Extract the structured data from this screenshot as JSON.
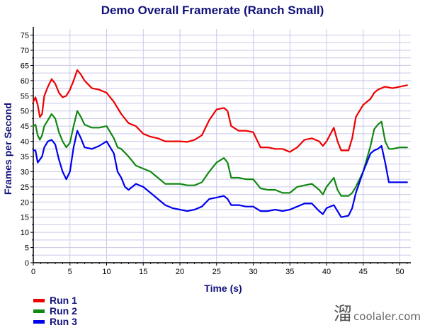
{
  "chart_data": {
    "type": "line",
    "title": "Demo Overall Framerate (Ranch Small)",
    "xlabel": "Time (s)",
    "ylabel": "Frames per Second",
    "xlim": [
      0,
      51.5
    ],
    "ylim": [
      0,
      77
    ],
    "xticks": [
      0,
      5,
      10,
      15,
      20,
      25,
      30,
      35,
      40,
      45,
      50
    ],
    "yticks": [
      0,
      5,
      10,
      15,
      20,
      25,
      30,
      35,
      40,
      45,
      50,
      55,
      60,
      65,
      70,
      75
    ],
    "grid": true,
    "legend_position": "bottom-left",
    "series": [
      {
        "name": "Run 1",
        "color": "#ee0000",
        "points": [
          [
            0,
            53
          ],
          [
            0.3,
            54.5
          ],
          [
            0.6,
            52
          ],
          [
            0.9,
            48
          ],
          [
            1.2,
            49
          ],
          [
            1.5,
            55
          ],
          [
            2,
            58
          ],
          [
            2.5,
            60.5
          ],
          [
            3,
            59
          ],
          [
            3.5,
            56
          ],
          [
            4,
            54.5
          ],
          [
            4.5,
            55
          ],
          [
            5,
            57
          ],
          [
            5.5,
            60
          ],
          [
            6,
            63.5
          ],
          [
            6.5,
            62
          ],
          [
            7,
            60
          ],
          [
            8,
            57.5
          ],
          [
            9,
            57
          ],
          [
            10,
            56
          ],
          [
            11,
            53
          ],
          [
            12,
            49
          ],
          [
            13,
            46
          ],
          [
            14,
            45
          ],
          [
            15,
            42.5
          ],
          [
            16,
            41.5
          ],
          [
            17,
            41
          ],
          [
            18,
            40
          ],
          [
            19,
            40
          ],
          [
            20,
            40
          ],
          [
            21,
            39.8
          ],
          [
            22,
            40.5
          ],
          [
            23,
            42
          ],
          [
            24,
            47
          ],
          [
            25,
            50.5
          ],
          [
            26,
            51
          ],
          [
            26.5,
            50
          ],
          [
            27,
            45
          ],
          [
            28,
            43.5
          ],
          [
            29,
            43.5
          ],
          [
            30,
            43
          ],
          [
            31,
            38
          ],
          [
            32,
            38
          ],
          [
            33,
            37.5
          ],
          [
            34,
            37.5
          ],
          [
            35,
            36.5
          ],
          [
            36,
            38
          ],
          [
            37,
            40.5
          ],
          [
            38,
            41
          ],
          [
            39,
            40
          ],
          [
            39.5,
            38.5
          ],
          [
            40,
            40
          ],
          [
            41,
            44.5
          ],
          [
            41.5,
            40
          ],
          [
            42,
            37
          ],
          [
            43,
            37
          ],
          [
            43.5,
            41
          ],
          [
            44,
            48
          ],
          [
            45,
            52
          ],
          [
            46,
            54
          ],
          [
            46.5,
            56
          ],
          [
            47,
            57
          ],
          [
            48,
            58
          ],
          [
            49,
            57.5
          ],
          [
            50,
            58
          ],
          [
            51,
            58.5
          ]
        ]
      },
      {
        "name": "Run 2",
        "color": "#118811",
        "points": [
          [
            0,
            45
          ],
          [
            0.3,
            45.5
          ],
          [
            0.6,
            42
          ],
          [
            0.9,
            40.5
          ],
          [
            1.2,
            42
          ],
          [
            1.5,
            45
          ],
          [
            2,
            47
          ],
          [
            2.5,
            49
          ],
          [
            3,
            47.5
          ],
          [
            3.5,
            43
          ],
          [
            4,
            40
          ],
          [
            4.5,
            38
          ],
          [
            5,
            39.5
          ],
          [
            5.5,
            45
          ],
          [
            6,
            50
          ],
          [
            6.5,
            48
          ],
          [
            7,
            45.5
          ],
          [
            8,
            44.5
          ],
          [
            9,
            44.5
          ],
          [
            10,
            45
          ],
          [
            11,
            41
          ],
          [
            11.5,
            38
          ],
          [
            12,
            37.5
          ],
          [
            13,
            35
          ],
          [
            14,
            32
          ],
          [
            15,
            31
          ],
          [
            16,
            30
          ],
          [
            17,
            28
          ],
          [
            18,
            26
          ],
          [
            19,
            26
          ],
          [
            20,
            26
          ],
          [
            21,
            25.5
          ],
          [
            22,
            25.5
          ],
          [
            23,
            26.5
          ],
          [
            24,
            30
          ],
          [
            25,
            33
          ],
          [
            26,
            34.5
          ],
          [
            26.5,
            33
          ],
          [
            27,
            28
          ],
          [
            28,
            28
          ],
          [
            29,
            27.5
          ],
          [
            30,
            27.5
          ],
          [
            31,
            24.5
          ],
          [
            32,
            24
          ],
          [
            33,
            24
          ],
          [
            34,
            23
          ],
          [
            35,
            23
          ],
          [
            36,
            25
          ],
          [
            37,
            25.5
          ],
          [
            38,
            26
          ],
          [
            39,
            24
          ],
          [
            39.5,
            22.5
          ],
          [
            40,
            25
          ],
          [
            41,
            28
          ],
          [
            41.5,
            24
          ],
          [
            42,
            22
          ],
          [
            43,
            22
          ],
          [
            43.5,
            23
          ],
          [
            44,
            25
          ],
          [
            45,
            30
          ],
          [
            46,
            38.5
          ],
          [
            46.5,
            44
          ],
          [
            47,
            45.5
          ],
          [
            47.5,
            46.5
          ],
          [
            48,
            40
          ],
          [
            48.5,
            37.5
          ],
          [
            49,
            37.5
          ],
          [
            50,
            38
          ],
          [
            51,
            38
          ]
        ]
      },
      {
        "name": "Run 3",
        "color": "#0000ee",
        "points": [
          [
            0,
            37
          ],
          [
            0.3,
            37
          ],
          [
            0.6,
            33
          ],
          [
            0.9,
            34
          ],
          [
            1.2,
            35
          ],
          [
            1.5,
            38
          ],
          [
            2,
            40
          ],
          [
            2.5,
            40.5
          ],
          [
            3,
            39
          ],
          [
            3.5,
            34
          ],
          [
            4,
            30
          ],
          [
            4.5,
            27.5
          ],
          [
            5,
            30
          ],
          [
            5.5,
            38
          ],
          [
            6,
            43.5
          ],
          [
            6.5,
            41
          ],
          [
            7,
            38
          ],
          [
            8,
            37.5
          ],
          [
            9,
            38.5
          ],
          [
            10,
            40
          ],
          [
            11,
            36
          ],
          [
            11.5,
            30
          ],
          [
            12,
            28
          ],
          [
            12.5,
            25
          ],
          [
            13,
            24
          ],
          [
            14,
            26
          ],
          [
            15,
            25
          ],
          [
            16,
            23
          ],
          [
            17,
            21
          ],
          [
            18,
            19
          ],
          [
            19,
            18
          ],
          [
            20,
            17.5
          ],
          [
            21,
            17
          ],
          [
            22,
            17.5
          ],
          [
            23,
            18.5
          ],
          [
            24,
            21
          ],
          [
            25,
            21.5
          ],
          [
            26,
            22
          ],
          [
            26.5,
            21
          ],
          [
            27,
            19
          ],
          [
            28,
            19
          ],
          [
            29,
            18.5
          ],
          [
            30,
            18.5
          ],
          [
            31,
            17
          ],
          [
            32,
            17
          ],
          [
            33,
            17.5
          ],
          [
            34,
            17
          ],
          [
            35,
            17.5
          ],
          [
            36,
            18.5
          ],
          [
            37,
            19.5
          ],
          [
            38,
            19.5
          ],
          [
            39,
            17
          ],
          [
            39.5,
            16
          ],
          [
            40,
            18
          ],
          [
            41,
            19
          ],
          [
            41.5,
            17
          ],
          [
            42,
            15
          ],
          [
            43,
            15.5
          ],
          [
            43.5,
            18
          ],
          [
            44,
            23
          ],
          [
            45,
            30
          ],
          [
            46,
            36
          ],
          [
            46.5,
            37
          ],
          [
            47,
            37.5
          ],
          [
            47.5,
            38.5
          ],
          [
            48,
            33
          ],
          [
            48.5,
            26.5
          ],
          [
            49,
            26.5
          ],
          [
            50,
            26.5
          ],
          [
            51,
            26.5
          ]
        ]
      }
    ]
  },
  "watermark": {
    "glyph": "溜",
    "text": "coolaler.com"
  }
}
